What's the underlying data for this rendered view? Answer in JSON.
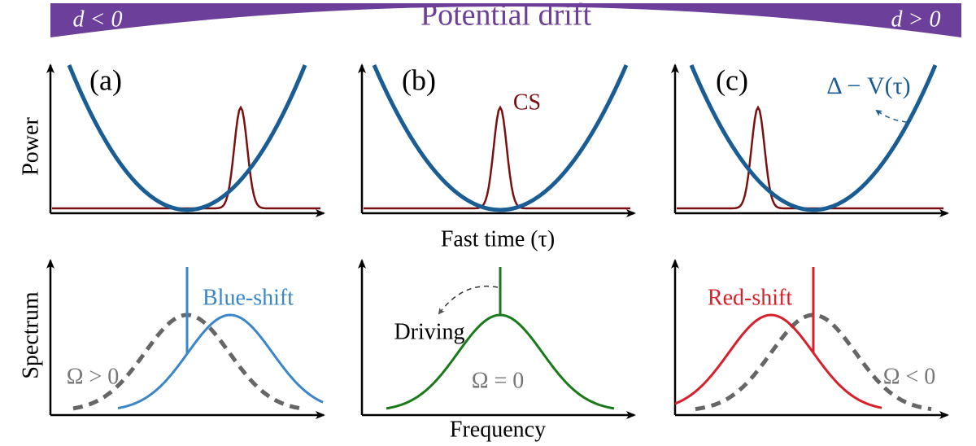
{
  "banner": {
    "left": "d < 0",
    "title": "Potential drift",
    "right": "d > 0"
  },
  "top_row": {
    "panels": [
      "(a)",
      "(b)",
      "(c)"
    ],
    "y_label": "Power",
    "soliton_label": "CS",
    "potential_label": "Δ − V(τ)",
    "x_label": "Fast time (τ)"
  },
  "bottom_row": {
    "y_label": "Spectrum",
    "x_label": "Frequency",
    "panel_a": {
      "shift": "Blue-shift",
      "omega": "Ω > 0"
    },
    "panel_b": {
      "driving": "Driving",
      "omega": "Ω = 0"
    },
    "panel_c": {
      "shift": "Red-shift",
      "omega": "Ω < 0"
    }
  }
}
